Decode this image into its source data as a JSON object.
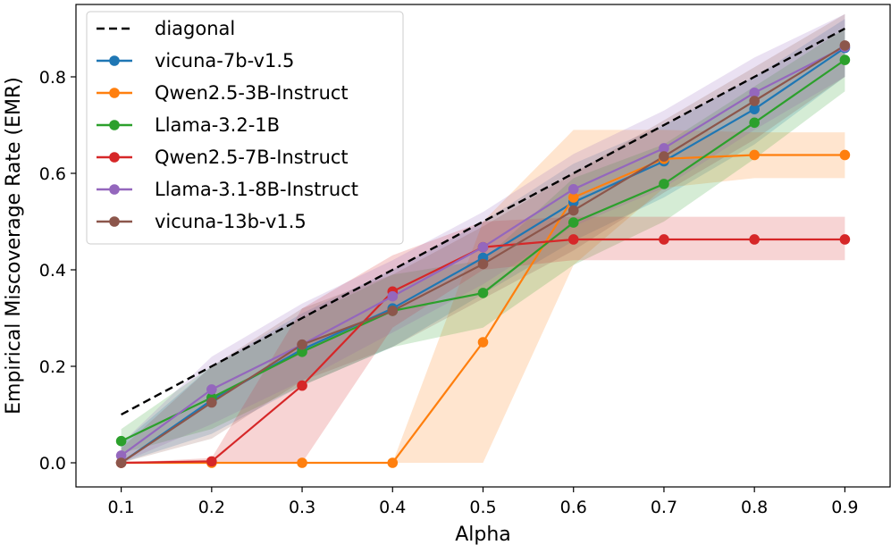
{
  "chart_data": {
    "type": "line",
    "title": "",
    "xlabel": "Alpha",
    "ylabel": "Empirical Miscoverage Rate (EMR)",
    "x": [
      0.1,
      0.2,
      0.3,
      0.4,
      0.5,
      0.6,
      0.7,
      0.8,
      0.9
    ],
    "xlim": [
      0.05,
      0.95
    ],
    "ylim": [
      -0.05,
      0.95
    ],
    "xticks": [
      "0.1",
      "0.2",
      "0.3",
      "0.4",
      "0.5",
      "0.6",
      "0.7",
      "0.8",
      "0.9"
    ],
    "yticks": [
      "0.0",
      "0.2",
      "0.4",
      "0.6",
      "0.8"
    ],
    "grid": false,
    "legend_position": "top-left",
    "reference": {
      "name": "diagonal",
      "style": "dashed",
      "color": "#000000",
      "values": [
        0.1,
        0.2,
        0.3,
        0.4,
        0.5,
        0.6,
        0.7,
        0.8,
        0.9
      ]
    },
    "series": [
      {
        "name": "vicuna-7b-v1.5",
        "color": "#1f77b4",
        "values": [
          0.0,
          0.13,
          0.235,
          0.32,
          0.425,
          0.54,
          0.625,
          0.733,
          0.86
        ],
        "lower": [
          0.0,
          0.06,
          0.16,
          0.24,
          0.35,
          0.46,
          0.55,
          0.66,
          0.8
        ],
        "upper": [
          0.04,
          0.2,
          0.31,
          0.4,
          0.5,
          0.62,
          0.7,
          0.8,
          0.92
        ]
      },
      {
        "name": "Qwen2.5-3B-Instruct",
        "color": "#ff7f0e",
        "values": [
          0.0,
          0.0,
          0.0,
          0.0,
          0.25,
          0.55,
          0.63,
          0.638,
          0.638
        ],
        "lower": [
          0.0,
          0.0,
          0.0,
          0.0,
          0.0,
          0.41,
          0.57,
          0.59,
          0.59
        ],
        "upper": [
          0.0,
          0.0,
          0.0,
          0.0,
          0.5,
          0.69,
          0.69,
          0.685,
          0.685
        ]
      },
      {
        "name": "Llama-3.2-1B",
        "color": "#2ca02c",
        "values": [
          0.045,
          0.135,
          0.23,
          0.315,
          0.352,
          0.498,
          0.578,
          0.705,
          0.835
        ],
        "lower": [
          0.02,
          0.07,
          0.16,
          0.24,
          0.28,
          0.41,
          0.5,
          0.63,
          0.77
        ],
        "upper": [
          0.07,
          0.2,
          0.3,
          0.39,
          0.42,
          0.59,
          0.66,
          0.78,
          0.9
        ]
      },
      {
        "name": "Qwen2.5-7B-Instruct",
        "color": "#d62728",
        "values": [
          0.0,
          0.003,
          0.16,
          0.355,
          0.447,
          0.463,
          0.463,
          0.463,
          0.463
        ],
        "lower": [
          0.0,
          0.0,
          0.0,
          0.28,
          0.4,
          0.42,
          0.42,
          0.42,
          0.42
        ],
        "upper": [
          0.0,
          0.01,
          0.32,
          0.43,
          0.5,
          0.51,
          0.51,
          0.51,
          0.51
        ]
      },
      {
        "name": "Llama-3.1-8B-Instruct",
        "color": "#9467bd",
        "values": [
          0.015,
          0.152,
          0.245,
          0.345,
          0.447,
          0.567,
          0.652,
          0.767,
          0.862
        ],
        "lower": [
          0.0,
          0.08,
          0.17,
          0.27,
          0.37,
          0.49,
          0.57,
          0.69,
          0.8
        ],
        "upper": [
          0.04,
          0.22,
          0.33,
          0.42,
          0.52,
          0.64,
          0.73,
          0.84,
          0.93
        ]
      },
      {
        "name": "vicuna-13b-v1.5",
        "color": "#8c564b",
        "values": [
          0.0,
          0.125,
          0.245,
          0.315,
          0.412,
          0.523,
          0.635,
          0.75,
          0.865
        ],
        "lower": [
          0.0,
          0.05,
          0.17,
          0.24,
          0.34,
          0.44,
          0.56,
          0.67,
          0.8
        ],
        "upper": [
          0.03,
          0.2,
          0.32,
          0.39,
          0.49,
          0.6,
          0.71,
          0.82,
          0.93
        ]
      }
    ]
  }
}
